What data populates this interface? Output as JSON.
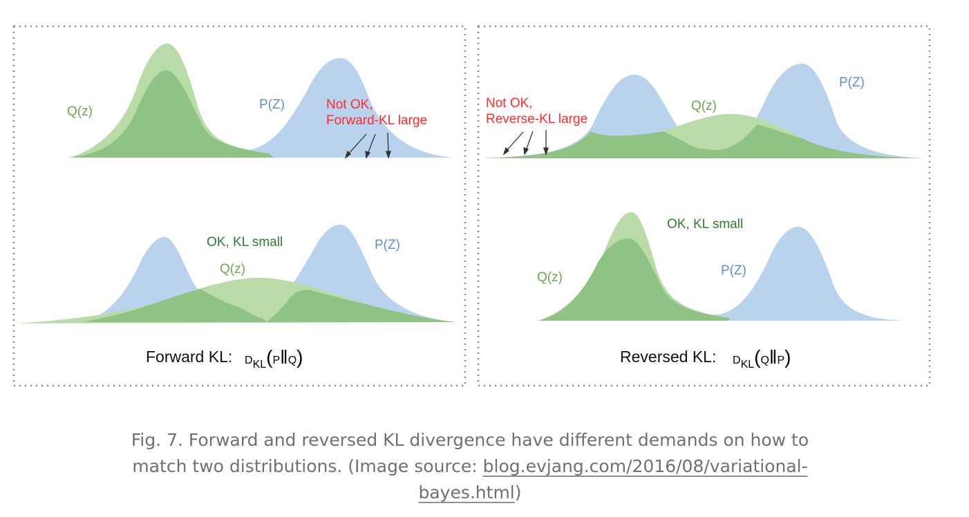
{
  "panels": {
    "forward": {
      "top": {
        "q_label": "Q(z)",
        "p_label": "P(Z)",
        "warning_line1": "Not OK,",
        "warning_line2": "Forward-KL large"
      },
      "bottom": {
        "ok_label": "OK, KL small",
        "q_label": "Q(z)",
        "p_label": "P(Z)"
      },
      "caption_text": "Forward KL:",
      "formula": {
        "prefix": "D",
        "subscript": "KL",
        "open": "(",
        "first": "P",
        "sep": "‖",
        "second": "Q",
        "close": ")"
      }
    },
    "reverse": {
      "top": {
        "warning_line1": "Not OK,",
        "warning_line2": "Reverse-KL large",
        "q_label": "Q(z)",
        "p_label": "P(Z)"
      },
      "bottom": {
        "ok_label": "OK, KL small",
        "q_label": "Q(z)",
        "p_label": "P(Z)"
      },
      "caption_text": "Reversed KL:",
      "formula": {
        "prefix": "D",
        "subscript": "KL",
        "open": "(",
        "first": "Q",
        "sep": "‖",
        "second": "P",
        "close": ")"
      }
    }
  },
  "colors": {
    "p_fill": "#b9d3ee",
    "q_fill": "#b8dba7",
    "overlap_fill": "#8fc383",
    "p_text": "#5b8fd6",
    "q_text": "#6aa84f",
    "ok_text": "#2e7d32",
    "warning_text": "#ff2a2a",
    "border": "#888888"
  },
  "caption": {
    "text": "Fig. 7. Forward and reversed KL divergence have different demands on how to match two distributions. (Image source: ",
    "link_text": "blog.evjang.com/2016/08/variational-bayes.html",
    "suffix": ")"
  }
}
